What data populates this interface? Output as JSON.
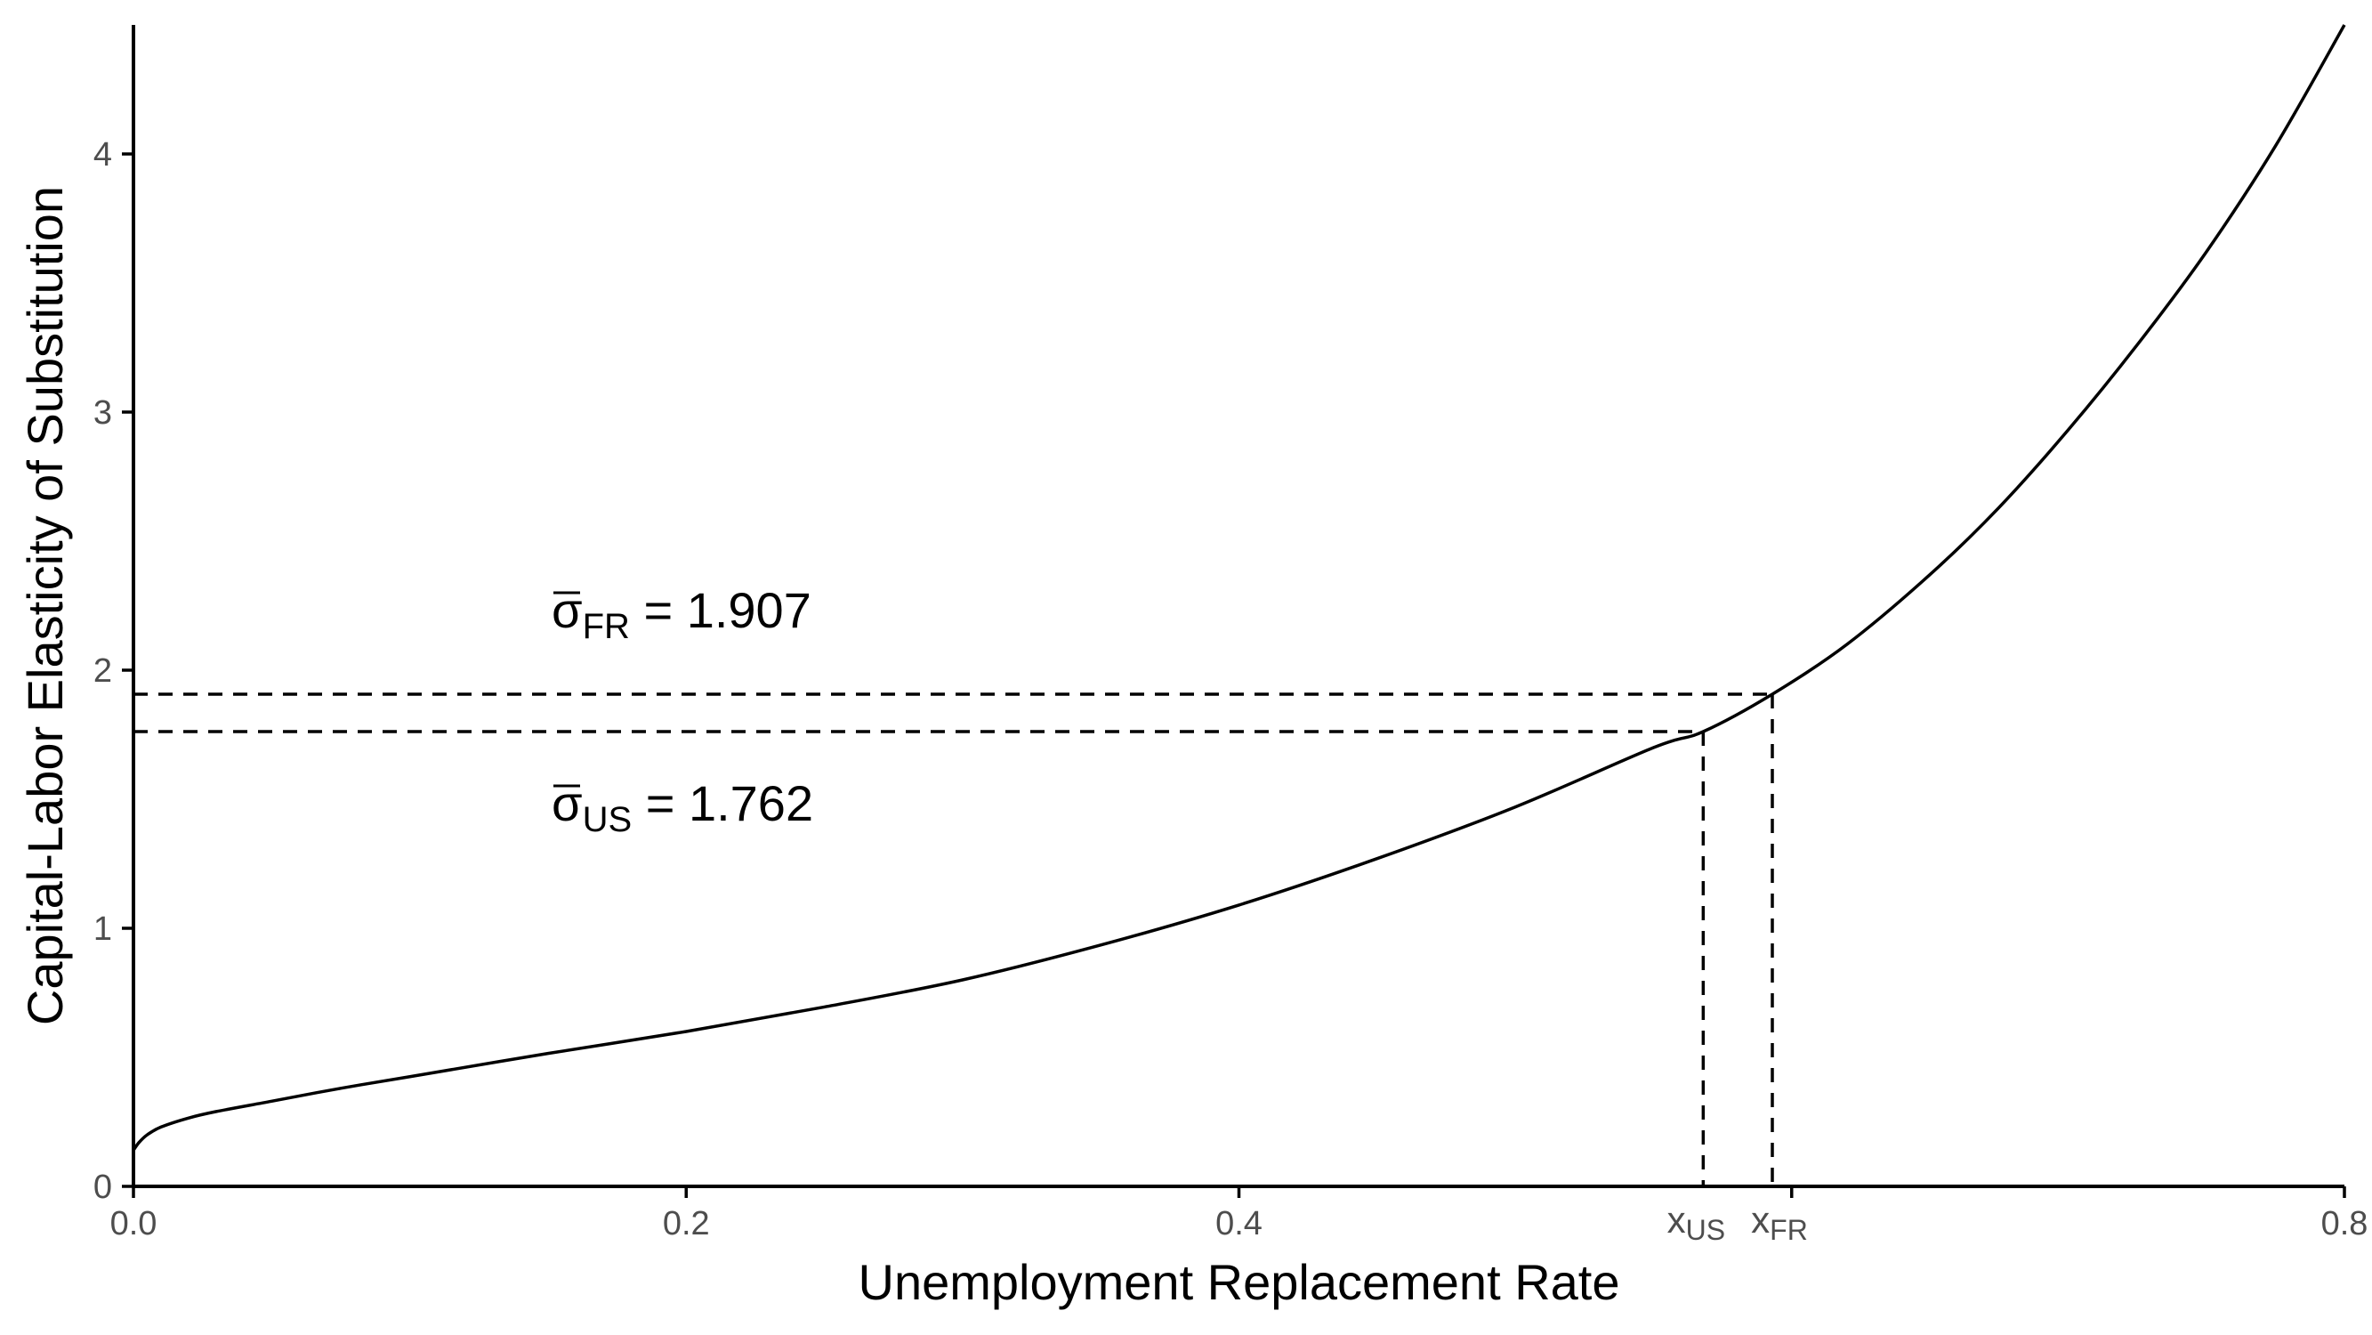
{
  "chart_data": {
    "type": "line",
    "xlabel": "Unemployment Replacement Rate",
    "ylabel": "Capital-Labor Elasticity of Substitution",
    "xlim": [
      0,
      0.8
    ],
    "ylim": [
      0,
      4.5
    ],
    "x_ticks": [
      0,
      0.2,
      0.4,
      0.6,
      0.8
    ],
    "x_tick_labels": [
      "0.0",
      "0.2",
      "0.4",
      "",
      "0.8"
    ],
    "y_ticks": [
      0,
      1,
      2,
      3,
      4
    ],
    "y_tick_labels": [
      "0",
      "1",
      "2",
      "3",
      "4"
    ],
    "grid": false,
    "series": [
      {
        "x": [
          0,
          0.002,
          0.005,
          0.01,
          0.02,
          0.03,
          0.05,
          0.075,
          0.1,
          0.15,
          0.2,
          0.25,
          0.3,
          0.35,
          0.4,
          0.45,
          0.5,
          0.55,
          0.568,
          0.593,
          0.62,
          0.65,
          0.675,
          0.7,
          0.725,
          0.75,
          0.775,
          0.8
        ],
        "y": [
          0.14,
          0.17,
          0.2,
          0.23,
          0.265,
          0.29,
          0.33,
          0.38,
          0.425,
          0.515,
          0.6,
          0.695,
          0.8,
          0.935,
          1.09,
          1.27,
          1.47,
          1.7,
          1.762,
          1.907,
          2.1,
          2.37,
          2.63,
          2.93,
          3.26,
          3.62,
          4.03,
          4.5
        ]
      }
    ],
    "reference_points": [
      {
        "x": 0.568,
        "y": 1.762
      },
      {
        "x": 0.593,
        "y": 1.907
      }
    ],
    "annotations": {
      "sigma_fr": {
        "symbol": "σ",
        "subscript": "FR",
        "eq": " = 1.907"
      },
      "sigma_us": {
        "symbol": "σ",
        "subscript": "US",
        "eq": " = 1.762"
      },
      "x_us": {
        "symbol": "x",
        "subscript": "US"
      },
      "x_fr": {
        "symbol": "x",
        "subscript": "FR"
      }
    }
  }
}
